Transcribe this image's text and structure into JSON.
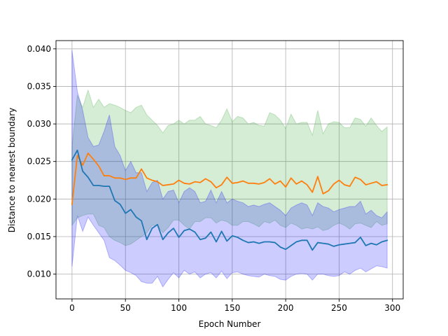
{
  "chart_data": {
    "type": "line",
    "xlabel": "Epoch Number",
    "ylabel": "Distance to nearest boundary",
    "xlim": [
      -15,
      310
    ],
    "ylim": [
      0.0067,
      0.0411
    ],
    "xticks": [
      0,
      50,
      100,
      150,
      200,
      250,
      300
    ],
    "yticks": [
      0.01,
      0.015,
      0.02,
      0.025,
      0.03,
      0.035,
      0.04
    ],
    "xtick_labels": [
      "0",
      "50",
      "100",
      "150",
      "200",
      "250",
      "300"
    ],
    "ytick_labels": [
      "0.010",
      "0.015",
      "0.020",
      "0.025",
      "0.030",
      "0.035",
      "0.040"
    ],
    "grid": true,
    "colors": {
      "orange_line": "#ff7f0e",
      "blue_line": "#1f77b4",
      "green_band": "#2ca02c",
      "blue_band": "#0000ff"
    },
    "x": [
      0,
      5,
      10,
      15,
      20,
      25,
      30,
      35,
      40,
      45,
      50,
      55,
      60,
      65,
      70,
      75,
      80,
      85,
      90,
      95,
      100,
      105,
      110,
      115,
      120,
      125,
      130,
      135,
      140,
      145,
      150,
      155,
      160,
      165,
      170,
      175,
      180,
      185,
      190,
      195,
      200,
      205,
      210,
      215,
      220,
      225,
      230,
      235,
      240,
      245,
      250,
      255,
      260,
      265,
      270,
      275,
      280,
      285,
      290,
      295
    ],
    "series": [
      {
        "color_key": "orange_line",
        "band_color_key": "green_band",
        "mean": [
          0.0193,
          0.0258,
          0.0245,
          0.0261,
          0.0253,
          0.0244,
          0.0231,
          0.0231,
          0.0228,
          0.0228,
          0.0226,
          0.0228,
          0.0228,
          0.024,
          0.0228,
          0.0225,
          0.0223,
          0.0218,
          0.0219,
          0.022,
          0.0225,
          0.0221,
          0.022,
          0.0223,
          0.0222,
          0.0227,
          0.0223,
          0.0215,
          0.0219,
          0.0229,
          0.0221,
          0.0222,
          0.0224,
          0.0221,
          0.0221,
          0.022,
          0.0222,
          0.0227,
          0.022,
          0.0224,
          0.0216,
          0.0228,
          0.022,
          0.0224,
          0.0219,
          0.0209,
          0.023,
          0.0207,
          0.0211,
          0.022,
          0.0225,
          0.0219,
          0.0217,
          0.0229,
          0.0226,
          0.0219,
          0.0221,
          0.0223,
          0.0218,
          0.0219
        ],
        "upper": [
          0.027,
          0.0338,
          0.0322,
          0.0345,
          0.0322,
          0.0333,
          0.0322,
          0.0327,
          0.0325,
          0.0322,
          0.0318,
          0.0315,
          0.0322,
          0.0325,
          0.0312,
          0.0305,
          0.0298,
          0.0288,
          0.0298,
          0.03,
          0.0305,
          0.03,
          0.0305,
          0.0305,
          0.031,
          0.03,
          0.0298,
          0.0295,
          0.0305,
          0.032,
          0.0303,
          0.031,
          0.0308,
          0.03,
          0.0302,
          0.0298,
          0.0297,
          0.0315,
          0.0312,
          0.0305,
          0.0294,
          0.0313,
          0.03,
          0.0302,
          0.0302,
          0.0285,
          0.0318,
          0.0287,
          0.03,
          0.0303,
          0.0302,
          0.0295,
          0.0295,
          0.0308,
          0.0306,
          0.0297,
          0.0308,
          0.0298,
          0.029,
          0.0296
        ],
        "lower": [
          0.0165,
          0.0175,
          0.0178,
          0.018,
          0.018,
          0.0165,
          0.0162,
          0.015,
          0.0145,
          0.0142,
          0.0138,
          0.014,
          0.0145,
          0.015,
          0.0155,
          0.0165,
          0.0165,
          0.0155,
          0.0162,
          0.0172,
          0.0172,
          0.0165,
          0.016,
          0.017,
          0.017,
          0.0175,
          0.0175,
          0.0168,
          0.0172,
          0.017,
          0.0165,
          0.0165,
          0.017,
          0.017,
          0.0167,
          0.0163,
          0.017,
          0.0168,
          0.0172,
          0.0165,
          0.0162,
          0.0168,
          0.0165,
          0.016,
          0.0162,
          0.016,
          0.0163,
          0.0158,
          0.016,
          0.0165,
          0.0168,
          0.0165,
          0.016,
          0.0167,
          0.0168,
          0.0165,
          0.0162,
          0.017,
          0.0165,
          0.0167
        ]
      },
      {
        "color_key": "blue_line",
        "band_color_key": "blue_band",
        "mean": [
          0.0252,
          0.0265,
          0.0237,
          0.0229,
          0.0218,
          0.0218,
          0.0217,
          0.0217,
          0.0198,
          0.0193,
          0.0181,
          0.0186,
          0.0176,
          0.0171,
          0.0146,
          0.0161,
          0.0166,
          0.0146,
          0.0155,
          0.0161,
          0.0149,
          0.0158,
          0.016,
          0.0156,
          0.0146,
          0.0148,
          0.0156,
          0.0143,
          0.0157,
          0.0144,
          0.0151,
          0.0149,
          0.0145,
          0.0142,
          0.0143,
          0.0141,
          0.0143,
          0.0143,
          0.0142,
          0.0136,
          0.0133,
          0.0138,
          0.0143,
          0.0145,
          0.0145,
          0.0132,
          0.0142,
          0.0141,
          0.014,
          0.0137,
          0.0139,
          0.014,
          0.0141,
          0.0142,
          0.0149,
          0.0138,
          0.0141,
          0.0139,
          0.0143,
          0.0145
        ],
        "upper": [
          0.0398,
          0.0343,
          0.0318,
          0.0282,
          0.027,
          0.0272,
          0.029,
          0.0312,
          0.027,
          0.0258,
          0.0238,
          0.025,
          0.0235,
          0.0235,
          0.021,
          0.0222,
          0.0225,
          0.02,
          0.021,
          0.0212,
          0.0195,
          0.021,
          0.0215,
          0.021,
          0.0195,
          0.0197,
          0.0212,
          0.0195,
          0.021,
          0.0195,
          0.02,
          0.0197,
          0.0195,
          0.019,
          0.0192,
          0.019,
          0.0193,
          0.0195,
          0.019,
          0.0185,
          0.0178,
          0.0188,
          0.0192,
          0.0195,
          0.0192,
          0.0178,
          0.0195,
          0.019,
          0.0188,
          0.0183,
          0.0186,
          0.0188,
          0.019,
          0.019,
          0.0197,
          0.018,
          0.0185,
          0.0178,
          0.0175,
          0.0183
        ],
        "lower": [
          0.011,
          0.0178,
          0.0157,
          0.0176,
          0.0165,
          0.0155,
          0.0145,
          0.0122,
          0.0118,
          0.0112,
          0.0105,
          0.0102,
          0.0098,
          0.009,
          0.0088,
          0.0088,
          0.0097,
          0.0083,
          0.0093,
          0.0102,
          0.0095,
          0.0105,
          0.01,
          0.0103,
          0.0095,
          0.01,
          0.0102,
          0.0095,
          0.0104,
          0.0094,
          0.0102,
          0.0103,
          0.01,
          0.0098,
          0.0097,
          0.0096,
          0.01,
          0.0098,
          0.0097,
          0.0093,
          0.0092,
          0.0097,
          0.01,
          0.0101,
          0.01,
          0.0092,
          0.01,
          0.01,
          0.0098,
          0.0097,
          0.0098,
          0.0103,
          0.01,
          0.0105,
          0.0108,
          0.0103,
          0.0107,
          0.0111,
          0.011,
          0.0108
        ]
      }
    ]
  }
}
